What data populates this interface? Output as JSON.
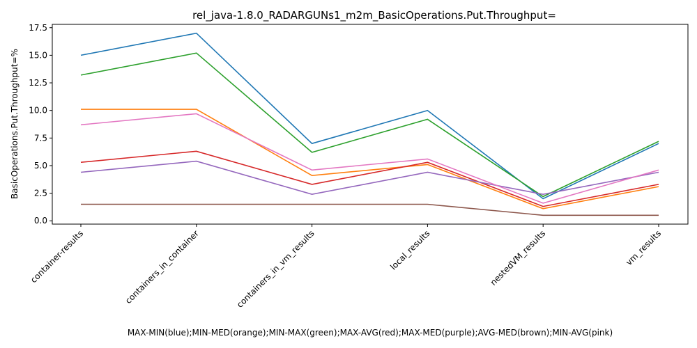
{
  "chart_data": {
    "type": "line",
    "title": "rel_java-1.8.0_RADARGUNs1_m2m_BasicOperations.Put.Throughput=",
    "xlabel": "MAX-MIN(blue);MIN-MED(orange);MIN-MAX(green);MAX-AVG(red);MAX-MED(purple);AVG-MED(brown);MIN-AVG(pink)",
    "ylabel": "BasicOperations.Put.Throughput=%",
    "categories": [
      "container-results",
      "containers_in_container",
      "containers_in_vm_results",
      "local_results",
      "nestedVM_results",
      "vm_results"
    ],
    "ylim": [
      -0.3,
      17.8
    ],
    "yticks": [
      "0.0",
      "2.5",
      "5.0",
      "7.5",
      "10.0",
      "12.5",
      "15.0",
      "17.5"
    ],
    "grid": false,
    "legend": "none",
    "series": [
      {
        "color": "#1f77b4",
        "values": [
          15.0,
          17.0,
          7.0,
          10.0,
          2.0,
          7.0
        ]
      },
      {
        "color": "#ff7f0e",
        "values": [
          10.1,
          10.1,
          4.1,
          5.1,
          1.1,
          3.1
        ]
      },
      {
        "color": "#2ca02c",
        "values": [
          13.2,
          15.2,
          6.2,
          9.2,
          2.2,
          7.2
        ]
      },
      {
        "color": "#d62728",
        "values": [
          5.3,
          6.3,
          3.3,
          5.3,
          1.3,
          3.3
        ]
      },
      {
        "color": "#9467bd",
        "values": [
          4.4,
          5.4,
          2.4,
          4.4,
          2.4,
          4.4
        ]
      },
      {
        "color": "#8c564b",
        "values": [
          1.5,
          1.5,
          1.5,
          1.5,
          0.5,
          0.5
        ]
      },
      {
        "color": "#e377c2",
        "values": [
          8.7,
          9.7,
          4.6,
          5.6,
          1.6,
          4.6
        ]
      }
    ]
  }
}
